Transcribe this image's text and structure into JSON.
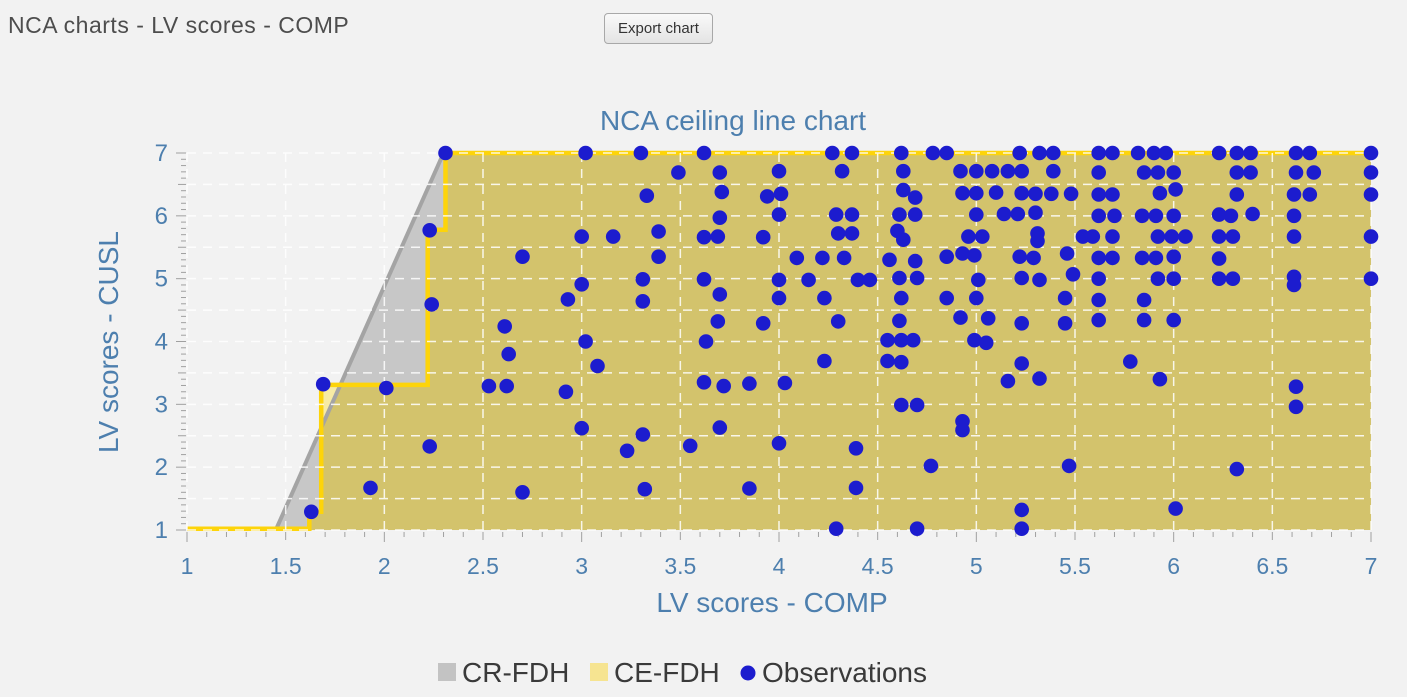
{
  "header": {
    "title": "NCA charts - LV scores - COMP",
    "export_button": "Export chart"
  },
  "colors": {
    "background": "#f2f2f2",
    "accent_blue_text": "#4d7fae",
    "observation_blue": "#1c1cce",
    "ce_fill": "#f7eba4",
    "ce_line": "#fdd40a",
    "cr_fill": "#c7c7c7",
    "cr_line": "#a4a4a4",
    "overlap_fill": "#d3c36c",
    "gridline": "#ffffff",
    "tick": "#a0a0a0",
    "legend_text": "#3a3a3a",
    "legend_cr_swatch": "#c3c3c3",
    "legend_ce_swatch": "#f6e491"
  },
  "chart_data": {
    "type": "scatter",
    "title": "NCA ceiling line chart",
    "xlabel": "LV scores - COMP",
    "ylabel": "LV scores - CUSL",
    "xlim": [
      1,
      7
    ],
    "ylim": [
      1,
      7
    ],
    "grid_step": 0.5,
    "minor_tick_step": 0.1,
    "grid": "white dashed",
    "legend_position": "bottom-center",
    "x_tick_values": [
      1,
      1.5,
      2,
      2.5,
      3,
      3.5,
      4,
      4.5,
      5,
      5.5,
      6,
      6.5,
      7
    ],
    "x_tick_labels": [
      "1",
      "1.5",
      "2",
      "2.5",
      "3",
      "3.5",
      "4",
      "4.5",
      "5",
      "5.5",
      "6",
      "6.5",
      "7"
    ],
    "y_tick_values": [
      1,
      2,
      3,
      4,
      5,
      6,
      7
    ],
    "y_tick_labels": [
      "1",
      "2",
      "3",
      "4",
      "5",
      "6",
      "7"
    ],
    "legend": [
      {
        "label": "CR-FDH",
        "shape": "square",
        "color": "#c3c3c3"
      },
      {
        "label": "CE-FDH",
        "shape": "square",
        "color": "#f6e491"
      },
      {
        "label": "Observations",
        "shape": "circle",
        "color": "#1c1cce"
      }
    ],
    "cr_fdh": {
      "line": [
        [
          1.45,
          1
        ],
        [
          2.3,
          7
        ]
      ],
      "area": [
        [
          1.45,
          1
        ],
        [
          2.3,
          7
        ],
        [
          7,
          7
        ],
        [
          7,
          1
        ]
      ]
    },
    "ce_fdh": {
      "steps": [
        [
          1,
          1.02
        ],
        [
          1.62,
          1.02
        ],
        [
          1.62,
          1.29
        ],
        [
          1.68,
          1.29
        ],
        [
          1.68,
          3.31
        ],
        [
          2.22,
          3.31
        ],
        [
          2.22,
          5.78
        ],
        [
          2.31,
          5.78
        ],
        [
          2.31,
          7
        ],
        [
          7,
          7
        ]
      ],
      "area": [
        [
          1,
          1
        ],
        [
          1.62,
          1
        ],
        [
          1.62,
          1.29
        ],
        [
          1.68,
          1.29
        ],
        [
          1.68,
          3.31
        ],
        [
          2.22,
          3.31
        ],
        [
          2.22,
          5.78
        ],
        [
          2.31,
          5.78
        ],
        [
          2.31,
          7
        ],
        [
          7,
          7
        ],
        [
          7,
          1
        ]
      ],
      "only_region": [
        [
          1.68,
          3.31
        ],
        [
          1.78,
          3.31
        ],
        [
          1.68,
          2.62
        ]
      ]
    },
    "points": [
      [
        1.63,
        1.29
      ],
      [
        1.69,
        3.32
      ],
      [
        1.93,
        1.67
      ],
      [
        2.01,
        3.26
      ],
      [
        2.23,
        2.33
      ],
      [
        2.24,
        4.59
      ],
      [
        2.23,
        5.77
      ],
      [
        2.31,
        7
      ],
      [
        2.53,
        3.29
      ],
      [
        2.61,
        4.24
      ],
      [
        2.62,
        3.29
      ],
      [
        2.63,
        3.8
      ],
      [
        2.7,
        5.35
      ],
      [
        2.7,
        1.6
      ],
      [
        2.92,
        3.2
      ],
      [
        2.93,
        4.67
      ],
      [
        3.0,
        5.67
      ],
      [
        3.0,
        4.91
      ],
      [
        3.0,
        2.62
      ],
      [
        3.02,
        7
      ],
      [
        3.02,
        4.0
      ],
      [
        3.08,
        3.61
      ],
      [
        3.16,
        5.67
      ],
      [
        3.23,
        2.26
      ],
      [
        3.3,
        7
      ],
      [
        3.31,
        4.99
      ],
      [
        3.31,
        4.64
      ],
      [
        3.31,
        2.52
      ],
      [
        3.32,
        1.65
      ],
      [
        3.33,
        6.32
      ],
      [
        3.39,
        5.75
      ],
      [
        3.39,
        5.35
      ],
      [
        3.49,
        6.69
      ],
      [
        3.55,
        2.34
      ],
      [
        3.62,
        7
      ],
      [
        3.62,
        5.66
      ],
      [
        3.62,
        4.99
      ],
      [
        3.63,
        4.0
      ],
      [
        3.62,
        3.35
      ],
      [
        3.69,
        5.67
      ],
      [
        3.69,
        4.32
      ],
      [
        3.7,
        6.69
      ],
      [
        3.7,
        5.97
      ],
      [
        3.7,
        4.75
      ],
      [
        3.7,
        2.63
      ],
      [
        3.71,
        6.38
      ],
      [
        3.72,
        3.29
      ],
      [
        3.85,
        3.33
      ],
      [
        3.85,
        1.66
      ],
      [
        3.92,
        5.66
      ],
      [
        3.92,
        4.29
      ],
      [
        3.94,
        6.31
      ],
      [
        4.0,
        6.71
      ],
      [
        4.01,
        6.35
      ],
      [
        4.0,
        6.02
      ],
      [
        4.0,
        4.98
      ],
      [
        4.0,
        4.69
      ],
      [
        4.0,
        2.38
      ],
      [
        4.03,
        3.34
      ],
      [
        4.09,
        5.33
      ],
      [
        4.15,
        4.98
      ],
      [
        4.22,
        5.33
      ],
      [
        4.23,
        4.69
      ],
      [
        4.23,
        3.69
      ],
      [
        4.27,
        7
      ],
      [
        4.29,
        6.02
      ],
      [
        4.29,
        1.02
      ],
      [
        4.3,
        5.72
      ],
      [
        4.3,
        4.32
      ],
      [
        4.32,
        6.71
      ],
      [
        4.33,
        5.33
      ],
      [
        4.37,
        7
      ],
      [
        4.37,
        6.02
      ],
      [
        4.37,
        5.72
      ],
      [
        4.39,
        2.3
      ],
      [
        4.39,
        1.67
      ],
      [
        4.4,
        4.98
      ],
      [
        4.46,
        4.98
      ],
      [
        4.55,
        4.02
      ],
      [
        4.55,
        3.69
      ],
      [
        4.56,
        5.3
      ],
      [
        4.6,
        5.76
      ],
      [
        4.61,
        6.02
      ],
      [
        4.61,
        5.01
      ],
      [
        4.61,
        4.33
      ],
      [
        4.62,
        7
      ],
      [
        4.62,
        4.69
      ],
      [
        4.62,
        4.02
      ],
      [
        4.62,
        3.67
      ],
      [
        4.62,
        2.99
      ],
      [
        4.63,
        6.71
      ],
      [
        4.63,
        6.41
      ],
      [
        4.63,
        5.62
      ],
      [
        4.68,
        4.02
      ],
      [
        4.69,
        6.29
      ],
      [
        4.69,
        6.02
      ],
      [
        4.69,
        5.28
      ],
      [
        4.7,
        5.01
      ],
      [
        4.7,
        2.99
      ],
      [
        4.7,
        1.02
      ],
      [
        4.77,
        2.02
      ],
      [
        4.78,
        7
      ],
      [
        4.85,
        7
      ],
      [
        4.85,
        5.35
      ],
      [
        4.85,
        4.69
      ],
      [
        4.92,
        6.71
      ],
      [
        4.93,
        6.36
      ],
      [
        4.92,
        4.38
      ],
      [
        4.93,
        5.4
      ],
      [
        4.93,
        2.73
      ],
      [
        4.93,
        2.59
      ],
      [
        4.96,
        5.67
      ],
      [
        4.99,
        5.37
      ],
      [
        4.99,
        4.02
      ],
      [
        5.0,
        6.71
      ],
      [
        5.0,
        6.36
      ],
      [
        5.0,
        6.02
      ],
      [
        5.0,
        4.69
      ],
      [
        5.01,
        4.98
      ],
      [
        5.03,
        5.67
      ],
      [
        5.05,
        3.98
      ],
      [
        5.06,
        4.37
      ],
      [
        5.08,
        6.71
      ],
      [
        5.1,
        6.37
      ],
      [
        5.14,
        6.03
      ],
      [
        5.16,
        6.71
      ],
      [
        5.16,
        3.37
      ],
      [
        5.21,
        6.03
      ],
      [
        5.22,
        7
      ],
      [
        5.22,
        5.35
      ],
      [
        5.23,
        6.71
      ],
      [
        5.23,
        6.36
      ],
      [
        5.23,
        5.01
      ],
      [
        5.23,
        4.29
      ],
      [
        5.23,
        3.65
      ],
      [
        5.23,
        1.32
      ],
      [
        5.23,
        1.02
      ],
      [
        5.29,
        5.33
      ],
      [
        5.3,
        6.35
      ],
      [
        5.3,
        6.05
      ],
      [
        5.31,
        5.72
      ],
      [
        5.31,
        5.6
      ],
      [
        5.32,
        7
      ],
      [
        5.32,
        4.98
      ],
      [
        5.32,
        3.41
      ],
      [
        5.38,
        6.35
      ],
      [
        5.39,
        7
      ],
      [
        5.39,
        6.71
      ],
      [
        5.45,
        4.69
      ],
      [
        5.45,
        4.29
      ],
      [
        5.46,
        5.4
      ],
      [
        5.47,
        2.02
      ],
      [
        5.48,
        6.35
      ],
      [
        5.49,
        5.07
      ],
      [
        5.54,
        5.67
      ],
      [
        5.59,
        5.67
      ],
      [
        5.62,
        7
      ],
      [
        5.62,
        6.69
      ],
      [
        5.62,
        6.34
      ],
      [
        5.62,
        6.0
      ],
      [
        5.62,
        5.33
      ],
      [
        5.62,
        5.0
      ],
      [
        5.62,
        4.66
      ],
      [
        5.62,
        4.34
      ],
      [
        5.69,
        7
      ],
      [
        5.69,
        6.34
      ],
      [
        5.69,
        5.67
      ],
      [
        5.69,
        5.33
      ],
      [
        5.7,
        6.0
      ],
      [
        5.78,
        3.68
      ],
      [
        5.82,
        7
      ],
      [
        5.84,
        6.0
      ],
      [
        5.84,
        5.33
      ],
      [
        5.85,
        6.69
      ],
      [
        5.85,
        4.66
      ],
      [
        5.85,
        4.34
      ],
      [
        5.9,
        7
      ],
      [
        5.91,
        6.0
      ],
      [
        5.91,
        5.33
      ],
      [
        5.92,
        6.69
      ],
      [
        5.92,
        5.67
      ],
      [
        5.92,
        5.0
      ],
      [
        5.93,
        6.36
      ],
      [
        5.93,
        3.4
      ],
      [
        5.96,
        7
      ],
      [
        5.99,
        5.67
      ],
      [
        6.0,
        6.69
      ],
      [
        6.0,
        6.0
      ],
      [
        6.0,
        5.35
      ],
      [
        6.0,
        5.0
      ],
      [
        6.0,
        4.34
      ],
      [
        6.01,
        6.42
      ],
      [
        6.01,
        1.34
      ],
      [
        6.06,
        5.67
      ],
      [
        6.23,
        7
      ],
      [
        6.23,
        6.02
      ],
      [
        6.23,
        5.67
      ],
      [
        6.23,
        5.32
      ],
      [
        6.23,
        5.0
      ],
      [
        6.29,
        6.0
      ],
      [
        6.3,
        5.67
      ],
      [
        6.3,
        5.0
      ],
      [
        6.32,
        7
      ],
      [
        6.32,
        6.69
      ],
      [
        6.32,
        6.34
      ],
      [
        6.32,
        1.97
      ],
      [
        6.39,
        7
      ],
      [
        6.39,
        6.69
      ],
      [
        6.4,
        6.03
      ],
      [
        6.61,
        6.34
      ],
      [
        6.61,
        6.0
      ],
      [
        6.61,
        5.67
      ],
      [
        6.61,
        5.03
      ],
      [
        6.61,
        4.9
      ],
      [
        6.62,
        7
      ],
      [
        6.62,
        6.69
      ],
      [
        6.62,
        3.28
      ],
      [
        6.62,
        2.96
      ],
      [
        6.69,
        7
      ],
      [
        6.69,
        6.34
      ],
      [
        6.71,
        6.69
      ],
      [
        7.0,
        7
      ],
      [
        7.0,
        6.69
      ],
      [
        7.0,
        6.34
      ],
      [
        7.0,
        5.67
      ],
      [
        7.0,
        5.0
      ]
    ]
  }
}
